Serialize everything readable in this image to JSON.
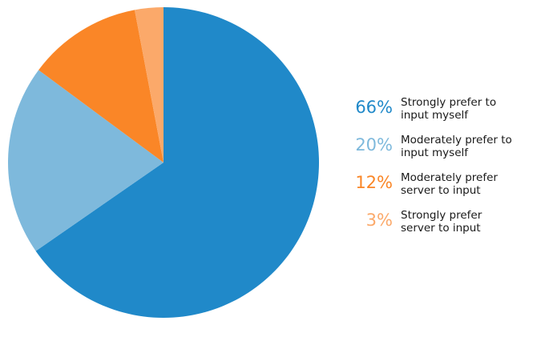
{
  "chart_data": {
    "type": "pie",
    "title": "",
    "start_angle_deg": 0,
    "direction": "clockwise",
    "slices": [
      {
        "label": "Strongly prefer to\ninput myself",
        "value": 66,
        "value_label": "66%",
        "color": "#2089c9"
      },
      {
        "label": "Moderately prefer to\ninput myself",
        "value": 20,
        "value_label": "20%",
        "color": "#7eb9dc"
      },
      {
        "label": "Moderately prefer\nserver to input",
        "value": 12,
        "value_label": "12%",
        "color": "#fa8627"
      },
      {
        "label": "Strongly prefer\nserver to input",
        "value": 3,
        "value_label": "3%",
        "color": "#fba96a"
      }
    ],
    "legend_position": "right"
  }
}
